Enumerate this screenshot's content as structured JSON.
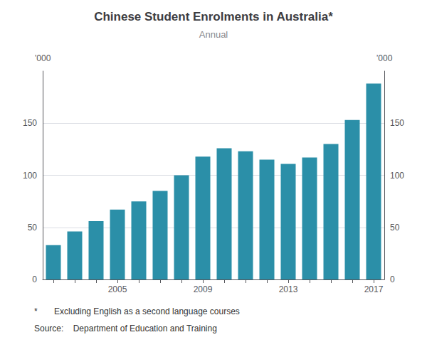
{
  "chart_data": {
    "type": "bar",
    "title": "Chinese Student Enrolments in Australia*",
    "subtitle": "Annual",
    "ylabel": "’000",
    "y2label": "’000",
    "categories": [
      null,
      null,
      null,
      "2005",
      null,
      null,
      null,
      "2009",
      null,
      null,
      null,
      "2013",
      null,
      null,
      null,
      "2017"
    ],
    "values": [
      33,
      46,
      56,
      67,
      75,
      85,
      100,
      118,
      126,
      123,
      115,
      111,
      117,
      130,
      153,
      188
    ],
    "color": "#2B8FA8",
    "ylim": [
      0,
      200
    ],
    "yticks": [
      0,
      50,
      100,
      150
    ],
    "y2lim": [
      0,
      200
    ],
    "y2ticks": [
      0,
      50,
      100,
      150
    ],
    "grid": true,
    "annotations": [
      "*       Excluding English as a second language courses",
      "Source:    Department of Education and Training"
    ]
  }
}
